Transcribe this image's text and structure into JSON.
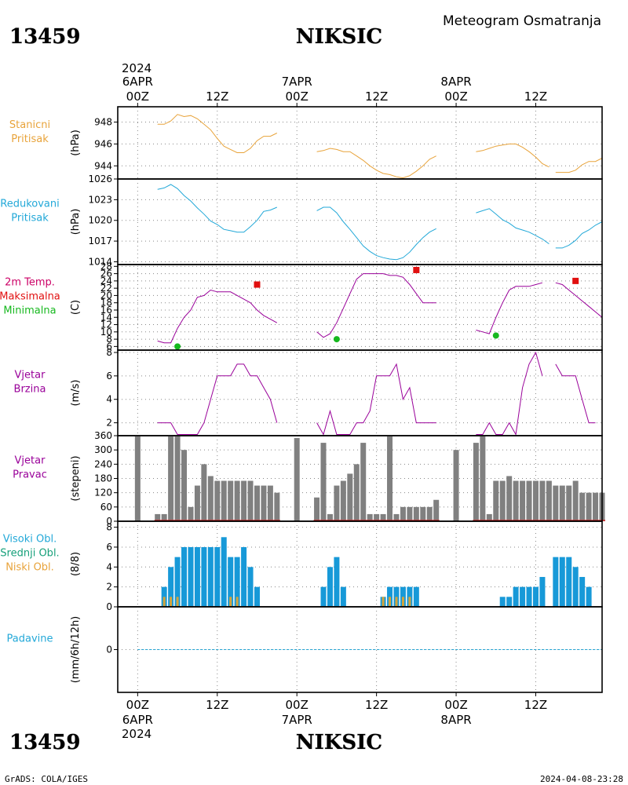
{
  "header": {
    "station_id": "13459",
    "station_name": "NIKSIC",
    "title": "Meteogram Osmatranja",
    "footer_left": "GrADS: COLA/IGES",
    "footer_right": "2024-04-08-23:28"
  },
  "time_axis": {
    "top_year": "2024",
    "bottom_year": "2024",
    "ticks": [
      {
        "t": 0,
        "label": "00Z",
        "date": "6APR"
      },
      {
        "t": 12,
        "label": "12Z"
      },
      {
        "t": 24,
        "label": "00Z",
        "date": "7APR"
      },
      {
        "t": 36,
        "label": "12Z"
      },
      {
        "t": 48,
        "label": "00Z",
        "date": "8APR"
      },
      {
        "t": 60,
        "label": "12Z"
      }
    ],
    "range_hours": [
      -3,
      70
    ]
  },
  "chart_data": [
    {
      "id": "stanicni",
      "type": "line",
      "labels": [
        "Stanicni",
        "Pritisak"
      ],
      "label_colors": [
        "#e8a33a",
        "#e8a33a"
      ],
      "unit": "(hPa)",
      "ylim": [
        942.8,
        949.4
      ],
      "yticks": [
        944,
        946,
        948
      ],
      "series": [
        {
          "color": "#e8a33a",
          "x": [
            3,
            4,
            5,
            6,
            7,
            8,
            9,
            10,
            11,
            12,
            13,
            14,
            15,
            16,
            17,
            18,
            19,
            20,
            21,
            null,
            27,
            28,
            29,
            30,
            31,
            32,
            33,
            34,
            35,
            36,
            37,
            38,
            39,
            40,
            41,
            42,
            43,
            44,
            45,
            null,
            51,
            52,
            53,
            54,
            55,
            56,
            57,
            58,
            59,
            60,
            61,
            62,
            null,
            63,
            64,
            65,
            66,
            67,
            68,
            69,
            70
          ],
          "y": [
            947.8,
            947.8,
            948.1,
            948.7,
            948.5,
            948.6,
            948.3,
            947.8,
            947.3,
            946.5,
            945.8,
            945.5,
            945.2,
            945.2,
            945.6,
            946.3,
            946.7,
            946.7,
            947.0,
            null,
            945.3,
            945.4,
            945.6,
            945.5,
            945.3,
            945.3,
            944.9,
            944.5,
            944.0,
            943.6,
            943.3,
            943.2,
            943.0,
            942.9,
            943.1,
            943.5,
            944.0,
            944.6,
            944.9,
            null,
            945.3,
            945.4,
            945.6,
            945.8,
            945.9,
            946.0,
            946.0,
            945.7,
            945.3,
            944.8,
            944.2,
            943.9,
            null,
            943.4,
            943.4,
            943.4,
            943.6,
            944.1,
            944.4,
            944.4,
            944.7
          ]
        }
      ]
    },
    {
      "id": "redukovani",
      "type": "line",
      "labels": [
        "Redukovani",
        "Pritisak"
      ],
      "label_colors": [
        "#22a8d8",
        "#22a8d8"
      ],
      "unit": "(hPa)",
      "ylim": [
        1013.6,
        1026
      ],
      "yticks": [
        1014,
        1017,
        1020,
        1023,
        1026
      ],
      "series": [
        {
          "color": "#22a8d8",
          "x": [
            3,
            4,
            5,
            6,
            7,
            8,
            9,
            10,
            11,
            12,
            13,
            14,
            15,
            16,
            17,
            18,
            19,
            20,
            21,
            null,
            27,
            28,
            29,
            30,
            31,
            32,
            33,
            34,
            35,
            36,
            37,
            38,
            39,
            40,
            41,
            42,
            43,
            44,
            45,
            null,
            51,
            52,
            53,
            54,
            55,
            56,
            57,
            58,
            59,
            60,
            61,
            62,
            null,
            63,
            64,
            65,
            66,
            67,
            68,
            69,
            70
          ],
          "y": [
            1024.5,
            1024.7,
            1025.2,
            1024.6,
            1023.6,
            1022.8,
            1021.8,
            1020.9,
            1019.9,
            1019.4,
            1018.7,
            1018.5,
            1018.3,
            1018.3,
            1019.1,
            1020.0,
            1021.3,
            1021.5,
            1021.9,
            null,
            1021.4,
            1021.9,
            1021.9,
            1021.1,
            1019.8,
            1018.7,
            1017.5,
            1016.3,
            1015.5,
            1014.9,
            1014.6,
            1014.4,
            1014.3,
            1014.6,
            1015.4,
            1016.5,
            1017.5,
            1018.3,
            1018.8,
            null,
            1021.1,
            1021.4,
            1021.7,
            1020.9,
            1020.1,
            1019.6,
            1018.9,
            1018.6,
            1018.3,
            1017.8,
            1017.3,
            1016.6,
            null,
            1016.0,
            1016.0,
            1016.4,
            1017.1,
            1018.1,
            1018.6,
            1019.3,
            1019.8
          ]
        }
      ]
    },
    {
      "id": "temp",
      "type": "line",
      "labels": [
        "2m Temp.",
        "Maksimalna",
        "Minimalna"
      ],
      "label_colors": [
        "#cc0066",
        "#e11010",
        "#16b81e"
      ],
      "unit": "(C)",
      "ylim": [
        5,
        28.5
      ],
      "yticks": [
        6,
        8,
        10,
        12,
        14,
        16,
        18,
        20,
        22,
        24,
        26,
        28
      ],
      "series": [
        {
          "name": "2m Temp.",
          "color": "#990099",
          "x": [
            3,
            4,
            5,
            6,
            7,
            8,
            9,
            10,
            11,
            12,
            13,
            14,
            15,
            16,
            17,
            18,
            19,
            20,
            21,
            null,
            27,
            28,
            29,
            30,
            31,
            32,
            33,
            34,
            35,
            36,
            37,
            38,
            39,
            40,
            41,
            42,
            43,
            44,
            45,
            null,
            51,
            52,
            53,
            54,
            55,
            56,
            57,
            58,
            59,
            60,
            61,
            62,
            null,
            63,
            64,
            65,
            66,
            67,
            68,
            69,
            70
          ],
          "y": [
            7.5,
            7.0,
            7.0,
            11.0,
            14.0,
            16.0,
            19.5,
            20.0,
            21.5,
            21.0,
            21.0,
            21.0,
            20.0,
            19.0,
            18.0,
            16.0,
            14.5,
            13.5,
            12.5,
            null,
            10.0,
            8.5,
            9.5,
            12.5,
            16.5,
            20.5,
            24.5,
            26.0,
            26.0,
            26.0,
            26.0,
            25.5,
            25.5,
            25.0,
            23.0,
            20.5,
            18.0,
            18.0,
            18.0,
            null,
            10.5,
            10.0,
            9.5,
            14.0,
            18.0,
            21.5,
            22.5,
            22.5,
            22.5,
            23.0,
            23.5,
            null,
            null,
            23.5,
            23.0,
            21.5,
            20.0,
            18.5,
            17.0,
            15.5,
            14.0
          ]
        },
        {
          "name": "Maksimalna",
          "color": "#e11010",
          "marker": "square",
          "x": [
            18,
            42,
            66
          ],
          "y": [
            23,
            27,
            24
          ]
        },
        {
          "name": "Minimalna",
          "color": "#16b81e",
          "marker": "circle",
          "x": [
            6,
            30,
            54
          ],
          "y": [
            6,
            8,
            9
          ]
        }
      ]
    },
    {
      "id": "vjetar_brzina",
      "type": "line",
      "labels": [
        "Vjetar",
        "Brzina"
      ],
      "label_colors": [
        "#990099",
        "#990099"
      ],
      "unit": "(m/s)",
      "ylim": [
        0.9,
        8.2
      ],
      "yticks": [
        2,
        4,
        6,
        8
      ],
      "series": [
        {
          "color": "#990099",
          "x": [
            3,
            4,
            5,
            6,
            7,
            8,
            9,
            10,
            11,
            12,
            13,
            14,
            15,
            16,
            17,
            18,
            19,
            20,
            21,
            null,
            27,
            28,
            29,
            30,
            31,
            32,
            33,
            34,
            35,
            36,
            37,
            38,
            39,
            40,
            41,
            42,
            43,
            44,
            45,
            null,
            51,
            52,
            53,
            54,
            55,
            56,
            57,
            58,
            59,
            60,
            61,
            62,
            null,
            63,
            64,
            65,
            66,
            67,
            68,
            69,
            70
          ],
          "y": [
            2,
            2,
            2,
            1,
            1,
            1,
            1,
            2,
            4,
            6,
            6,
            6,
            7,
            7,
            6,
            6,
            5,
            4,
            2,
            null,
            2,
            1,
            3,
            1,
            1,
            1,
            2,
            2,
            3,
            6,
            6,
            6,
            7,
            4,
            5,
            2,
            2,
            2,
            2,
            null,
            1,
            1,
            2,
            1,
            1,
            2,
            1,
            5,
            7,
            8,
            6,
            null,
            null,
            7,
            6,
            6,
            6,
            4,
            2,
            2,
            null
          ]
        }
      ]
    },
    {
      "id": "vjetar_pravac",
      "type": "bar",
      "labels": [
        "Vjetar",
        "Pravac"
      ],
      "label_colors": [
        "#990099",
        "#990099"
      ],
      "unit": "(stepeni)",
      "ylim": [
        0,
        360
      ],
      "yticks": [
        0,
        60,
        120,
        180,
        240,
        300,
        360
      ],
      "bar_color": "#808080",
      "zero_line_color": "#cc2222",
      "x": [
        0,
        3,
        4,
        5,
        6,
        7,
        8,
        9,
        10,
        11,
        12,
        13,
        14,
        15,
        16,
        17,
        18,
        19,
        20,
        21,
        24,
        27,
        28,
        29,
        30,
        31,
        32,
        33,
        34,
        35,
        36,
        37,
        38,
        39,
        40,
        41,
        42,
        43,
        44,
        45,
        48,
        51,
        52,
        53,
        54,
        55,
        56,
        57,
        58,
        59,
        60,
        61,
        62,
        63,
        64,
        65,
        66,
        67,
        68,
        69,
        70
      ],
      "values": [
        360,
        30,
        30,
        360,
        360,
        300,
        60,
        150,
        240,
        190,
        170,
        170,
        170,
        170,
        170,
        170,
        150,
        150,
        150,
        120,
        350,
        100,
        330,
        30,
        150,
        170,
        200,
        240,
        330,
        30,
        30,
        30,
        360,
        30,
        60,
        60,
        60,
        60,
        60,
        90,
        300,
        330,
        360,
        30,
        170,
        170,
        190,
        170,
        170,
        170,
        170,
        170,
        170,
        150,
        150,
        150,
        170,
        120,
        120,
        120,
        120
      ]
    },
    {
      "id": "oblacnost",
      "type": "bar",
      "labels": [
        "Visoki Obl.",
        "Srednji Obl.",
        "Niski Obl."
      ],
      "label_colors": [
        "#22a8d8",
        "#16a07a",
        "#e8a33a"
      ],
      "unit": "(8/8)",
      "ylim": [
        0,
        8.6
      ],
      "yticks": [
        0,
        2,
        4,
        6,
        8
      ],
      "series": [
        {
          "name": "Visoki Obl.",
          "color": "#1799d8",
          "x": [
            4,
            5,
            6,
            7,
            8,
            9,
            10,
            11,
            12,
            13,
            14,
            15,
            16,
            17,
            18,
            28,
            29,
            30,
            31,
            37,
            38,
            39,
            40,
            41,
            42,
            55,
            56,
            57,
            58,
            59,
            60,
            61,
            63,
            64,
            65,
            66,
            67,
            68
          ],
          "values": [
            2,
            4,
            5,
            6,
            6,
            6,
            6,
            6,
            6,
            7,
            5,
            5,
            6,
            4,
            2,
            2,
            4,
            5,
            2,
            1,
            2,
            2,
            2,
            2,
            2,
            1,
            1,
            2,
            2,
            2,
            2,
            3,
            5,
            5,
            5,
            4,
            3,
            2
          ]
        },
        {
          "name": "Niski Obl.",
          "color": "#d4a43a",
          "x": [
            4,
            5,
            6,
            14,
            15,
            37,
            38,
            39,
            40,
            41
          ],
          "values": [
            1,
            1,
            1,
            1,
            1,
            1,
            1,
            1,
            1,
            1
          ]
        }
      ]
    },
    {
      "id": "padavine",
      "type": "line",
      "labels": [
        "Padavine"
      ],
      "label_colors": [
        "#22a8d8"
      ],
      "unit": "(mm/6h/12h)",
      "ylim": [
        -5,
        5
      ],
      "yticks": [
        0
      ],
      "series": [
        {
          "color": "#22a8d8",
          "x": [
            0,
            3,
            21,
            24,
            27,
            45,
            48,
            51,
            70
          ],
          "y": [
            0,
            0,
            0,
            0,
            0,
            0,
            0,
            0,
            0
          ]
        }
      ]
    }
  ]
}
